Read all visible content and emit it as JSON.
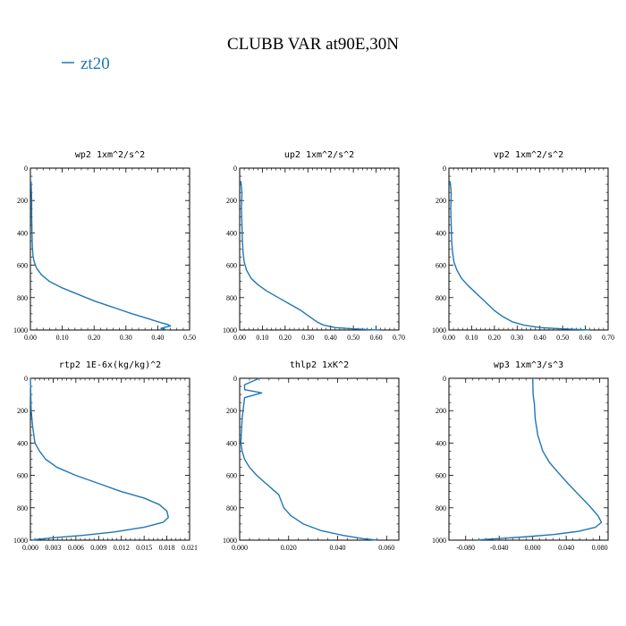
{
  "title": "CLUBB VAR at90E,30N",
  "legend": {
    "label": "zt20",
    "color": "#1f77b4",
    "placement": "top-left"
  },
  "line_color": "#1f77b4",
  "chart_data": [
    {
      "type": "line",
      "title": "wp2  1xm^2/s^2",
      "xlim": [
        0,
        0.5
      ],
      "ylim": [
        1000,
        0
      ],
      "inverted_y": true,
      "xticks": [
        0,
        0.1,
        0.2,
        0.3,
        0.4,
        0.5
      ],
      "xtick_labels": [
        "0.00",
        "0.10",
        "0.20",
        "0.30",
        "0.40",
        "0.50"
      ],
      "yticks": [
        0,
        200,
        400,
        600,
        800,
        1000
      ],
      "ytick_labels": [
        "0",
        "200",
        "400",
        "600",
        "800",
        "1000"
      ],
      "series": [
        {
          "name": "zt20",
          "x": [
            0.002,
            0.004,
            0.004,
            0.005,
            0.006,
            0.008,
            0.012,
            0.02,
            0.035,
            0.06,
            0.1,
            0.15,
            0.2,
            0.26,
            0.32,
            0.37,
            0.41,
            0.43,
            0.44,
            0.41,
            0.43
          ],
          "y": [
            80,
            200,
            300,
            400,
            480,
            540,
            580,
            620,
            660,
            700,
            740,
            780,
            820,
            860,
            900,
            930,
            955,
            965,
            975,
            990,
            1000
          ]
        }
      ]
    },
    {
      "type": "line",
      "title": "up2  1xm^2/s^2",
      "xlim": [
        0,
        0.7
      ],
      "ylim": [
        1000,
        0
      ],
      "inverted_y": true,
      "xticks": [
        0,
        0.1,
        0.2,
        0.3,
        0.4,
        0.5,
        0.6,
        0.7
      ],
      "xtick_labels": [
        "0.00",
        "0.10",
        "0.20",
        "0.30",
        "0.40",
        "0.50",
        "0.60",
        "0.70"
      ],
      "yticks": [
        0,
        200,
        400,
        600,
        800,
        1000
      ],
      "ytick_labels": [
        "0",
        "200",
        "400",
        "600",
        "800",
        "1000"
      ],
      "series": [
        {
          "name": "zt20",
          "x": [
            0.005,
            0.01,
            0.008,
            0.01,
            0.012,
            0.015,
            0.02,
            0.03,
            0.05,
            0.08,
            0.12,
            0.17,
            0.22,
            0.27,
            0.31,
            0.34,
            0.37,
            0.42,
            0.5,
            0.58,
            0.62
          ],
          "y": [
            80,
            150,
            250,
            350,
            450,
            520,
            580,
            630,
            680,
            720,
            760,
            800,
            840,
            880,
            920,
            950,
            970,
            985,
            993,
            998,
            1000
          ]
        }
      ]
    },
    {
      "type": "line",
      "title": "vp2  1xm^2/s^2",
      "xlim": [
        0,
        0.7
      ],
      "ylim": [
        1000,
        0
      ],
      "inverted_y": true,
      "xticks": [
        0,
        0.1,
        0.2,
        0.3,
        0.4,
        0.5,
        0.6,
        0.7
      ],
      "xtick_labels": [
        "0.00",
        "0.10",
        "0.20",
        "0.30",
        "0.40",
        "0.50",
        "0.60",
        "0.70"
      ],
      "yticks": [
        0,
        200,
        400,
        600,
        800,
        1000
      ],
      "ytick_labels": [
        "0",
        "200",
        "400",
        "600",
        "800",
        "1000"
      ],
      "series": [
        {
          "name": "zt20",
          "x": [
            0.005,
            0.01,
            0.008,
            0.01,
            0.012,
            0.016,
            0.022,
            0.035,
            0.055,
            0.08,
            0.11,
            0.14,
            0.17,
            0.2,
            0.24,
            0.28,
            0.33,
            0.4,
            0.5,
            0.6,
            0.62
          ],
          "y": [
            80,
            150,
            250,
            350,
            450,
            520,
            580,
            630,
            680,
            720,
            760,
            800,
            840,
            880,
            920,
            950,
            970,
            985,
            993,
            998,
            1000
          ]
        }
      ]
    },
    {
      "type": "line",
      "title": "rtp2  1E-6x(kg/kg)^2",
      "xlim": [
        0,
        0.021
      ],
      "ylim": [
        1000,
        0
      ],
      "inverted_y": true,
      "xticks": [
        0,
        0.003,
        0.006,
        0.009,
        0.012,
        0.015,
        0.018,
        0.021
      ],
      "xtick_labels": [
        "0.000",
        "0.003",
        "0.006",
        "0.009",
        "0.012",
        "0.015",
        "0.018",
        "0.021"
      ],
      "yticks": [
        0,
        200,
        400,
        600,
        800,
        1000
      ],
      "ytick_labels": [
        "0",
        "200",
        "400",
        "600",
        "800",
        "1000"
      ],
      "series": [
        {
          "name": "zt20",
          "x": [
            0.0,
            0.0001,
            0.0003,
            0.0006,
            0.0012,
            0.002,
            0.0035,
            0.006,
            0.009,
            0.012,
            0.015,
            0.017,
            0.018,
            0.0182,
            0.0175,
            0.015,
            0.011,
            0.007,
            0.003,
            0.001,
            0.0002
          ],
          "y": [
            0,
            200,
            300,
            400,
            450,
            500,
            550,
            600,
            650,
            700,
            740,
            780,
            820,
            860,
            890,
            920,
            950,
            970,
            985,
            995,
            1000
          ]
        }
      ]
    },
    {
      "type": "line",
      "title": "thlp2  1xK^2",
      "xlim": [
        0,
        0.065
      ],
      "ylim": [
        1000,
        0
      ],
      "inverted_y": true,
      "xticks": [
        0,
        0.02,
        0.04,
        0.06
      ],
      "xtick_labels": [
        "0.000",
        "0.020",
        "0.040",
        "0.060"
      ],
      "yticks": [
        0,
        200,
        400,
        600,
        800,
        1000
      ],
      "ytick_labels": [
        "0",
        "200",
        "400",
        "600",
        "800",
        "1000"
      ],
      "series": [
        {
          "name": "zt20",
          "x": [
            0.008,
            0.002,
            0.002,
            0.009,
            0.002,
            0.001,
            0.0005,
            0.001,
            0.002,
            0.004,
            0.007,
            0.01,
            0.013,
            0.016,
            0.017,
            0.018,
            0.021,
            0.026,
            0.033,
            0.042,
            0.05,
            0.056
          ],
          "y": [
            0,
            40,
            70,
            90,
            120,
            250,
            400,
            450,
            500,
            550,
            600,
            640,
            680,
            720,
            760,
            800,
            850,
            900,
            940,
            970,
            990,
            1000
          ]
        }
      ]
    },
    {
      "type": "line",
      "title": "wp3  1xm^3/s^3",
      "xlim": [
        -0.1,
        0.09
      ],
      "ylim": [
        1000,
        0
      ],
      "inverted_y": true,
      "xticks": [
        -0.08,
        -0.04,
        0.0,
        0.04,
        0.08
      ],
      "xtick_labels": [
        "-0.080",
        "-0.040",
        "0.000",
        "0.040",
        "0.080"
      ],
      "yticks": [
        0,
        200,
        400,
        600,
        800,
        1000
      ],
      "ytick_labels": [
        "0",
        "200",
        "400",
        "600",
        "800",
        "1000"
      ],
      "series": [
        {
          "name": "zt20",
          "x": [
            0.0,
            0.0005,
            0.002,
            0.003,
            0.006,
            0.012,
            0.02,
            0.03,
            0.042,
            0.055,
            0.068,
            0.078,
            0.082,
            0.075,
            0.055,
            0.025,
            -0.01,
            -0.04,
            -0.065
          ],
          "y": [
            0,
            100,
            160,
            250,
            350,
            450,
            520,
            580,
            650,
            720,
            790,
            850,
            890,
            920,
            945,
            965,
            980,
            990,
            998
          ]
        }
      ]
    }
  ]
}
